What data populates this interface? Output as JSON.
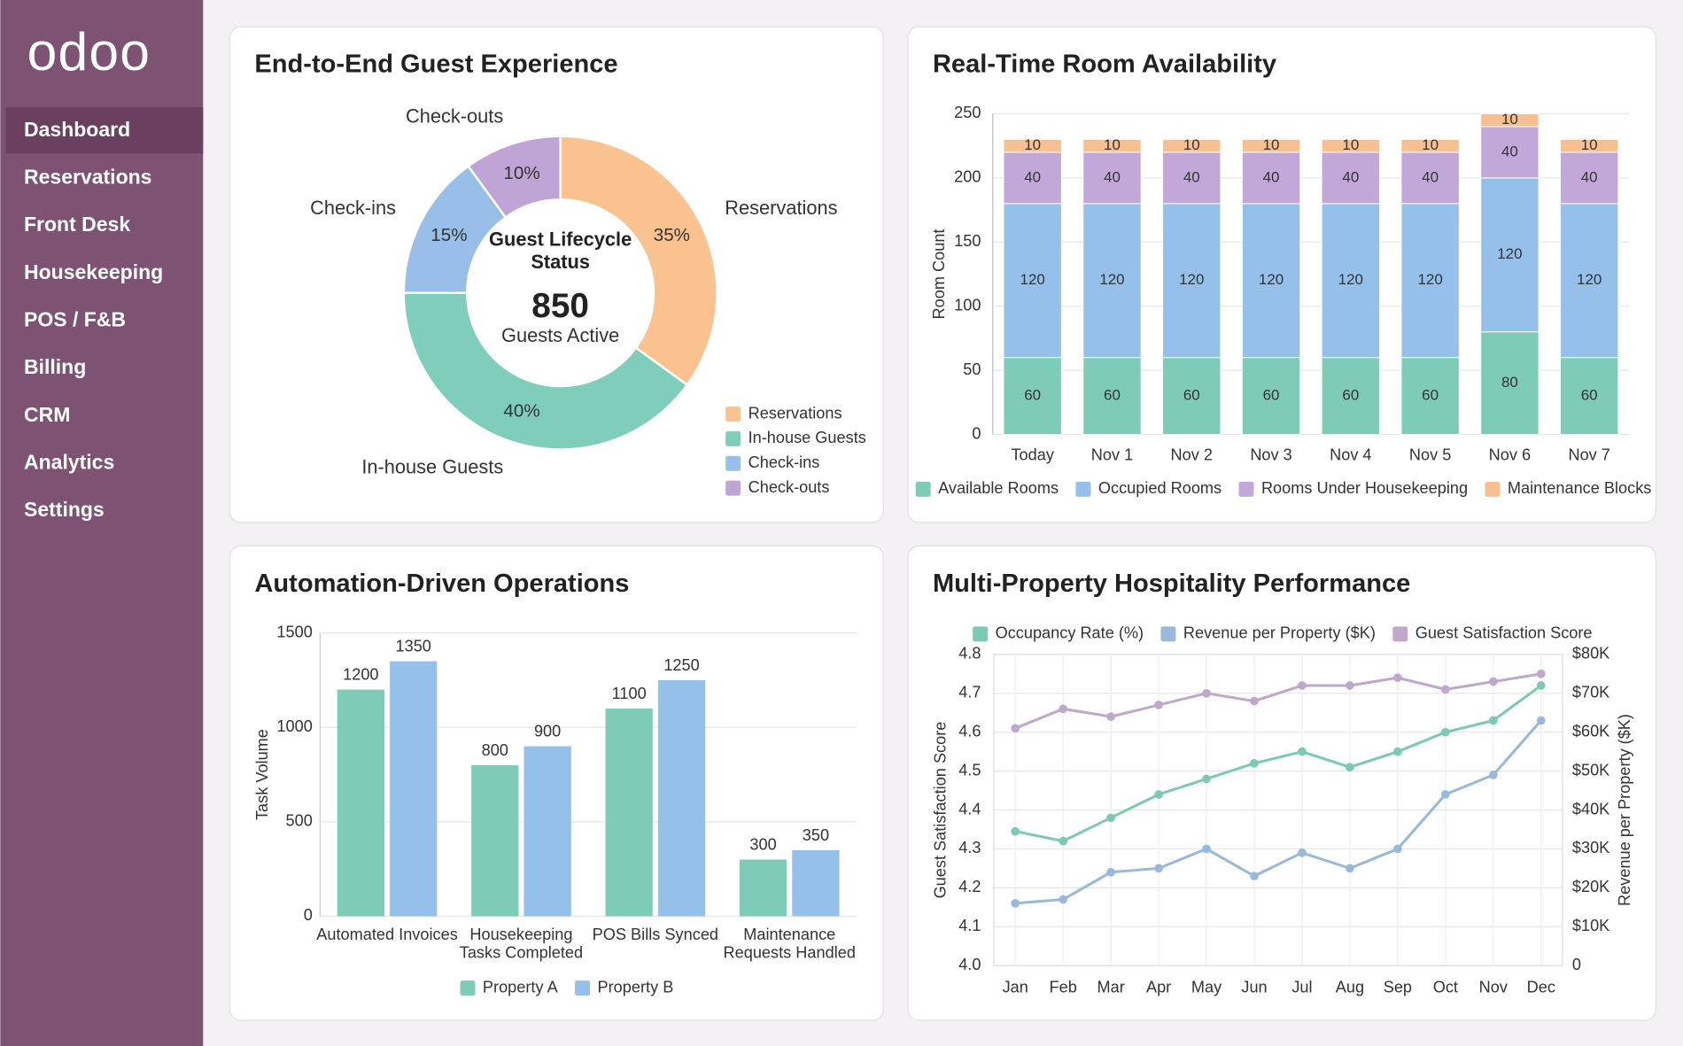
{
  "sidebar": {
    "logo": "odoo",
    "nav": [
      "Dashboard",
      "Reservations",
      "Front Desk",
      "Housekeeping",
      "POS / F&B",
      "Billing",
      "CRM",
      "Analytics",
      "Settings"
    ]
  },
  "chart_data": [
    {
      "type": "donut",
      "title": "End-to-End Guest Experience",
      "categories": [
        "Reservations",
        "In-house Guests",
        "Check-ins",
        "Check-outs"
      ],
      "values": [
        35,
        40,
        15,
        10
      ],
      "value_labels": [
        "35%",
        "40%",
        "15%",
        "10%"
      ],
      "colors": [
        "#f9c28e",
        "#7fcdbb",
        "#98bfe8",
        "#bfa5d6"
      ],
      "center_title": "Guest Lifecycle Status",
      "center_value": 850,
      "center_subtitle": "Guests Active",
      "legend": "lower-right"
    },
    {
      "type": "stacked-bar",
      "title": "Real-Time Room Availability",
      "y_label": "Room Count",
      "categories": [
        "Today",
        "Nov 1",
        "Nov 2",
        "Nov 3",
        "Nov 4",
        "Nov 5",
        "Nov 6",
        "Nov 7"
      ],
      "series": [
        {
          "name": "Available Rooms",
          "color": "#7ecbb8",
          "values": [
            60,
            60,
            60,
            60,
            60,
            60,
            80,
            60
          ]
        },
        {
          "name": "Occupied Rooms",
          "color": "#94c0ea",
          "values": [
            120,
            120,
            120,
            120,
            120,
            120,
            120,
            120
          ]
        },
        {
          "name": "Rooms Under Housekeeping",
          "color": "#c2a8d8",
          "values": [
            40,
            40,
            40,
            40,
            40,
            40,
            40,
            40
          ]
        },
        {
          "name": "Maintenance Blocks",
          "color": "#f9c08f",
          "values": [
            10,
            10,
            10,
            10,
            10,
            10,
            10,
            10
          ]
        }
      ],
      "ylim": [
        0,
        250
      ],
      "yticks": [
        0,
        50,
        100,
        150,
        200,
        250
      ],
      "grid": true,
      "legend": "bottom"
    },
    {
      "type": "grouped-bar",
      "title": "Automation-Driven Operations",
      "y_label": "Task Volume",
      "categories": [
        "Automated Invoices",
        "Housekeeping Tasks Completed",
        "POS Bills Synced",
        "Maintenance Requests Handled"
      ],
      "series": [
        {
          "name": "Property A",
          "color": "#7ecbb8",
          "values": [
            1200,
            800,
            1100,
            300
          ]
        },
        {
          "name": "Property B",
          "color": "#94c0ea",
          "values": [
            1350,
            900,
            1250,
            350
          ]
        }
      ],
      "ylim": [
        0,
        1500
      ],
      "yticks": [
        0,
        500,
        1000,
        1500
      ],
      "grid": true,
      "legend": "bottom"
    },
    {
      "type": "line",
      "title": "Multi-Property Hospitality Performance",
      "y_label": "Guest Satisfaction Score",
      "y2_label": "Revenue per Property ($K)",
      "categories": [
        "Jan",
        "Feb",
        "Mar",
        "Apr",
        "May",
        "Jun",
        "Jul",
        "Aug",
        "Sep",
        "Oct",
        "Nov",
        "Dec"
      ],
      "series": [
        {
          "name": "Occupancy Rate (%)",
          "color": "#7cc9b4",
          "axis": "y2",
          "values": [
            34.5,
            32,
            38,
            44,
            48,
            52,
            55,
            51,
            55,
            60,
            63,
            72
          ]
        },
        {
          "name": "Revenue per Property ($K)",
          "color": "#98b9dc",
          "axis": "y2",
          "values": [
            16,
            17,
            24,
            25,
            30,
            23,
            29,
            25,
            30,
            44,
            49,
            63
          ]
        },
        {
          "name": "Guest Satisfaction Score",
          "color": "#c0a8cb",
          "axis": "y",
          "values": [
            4.61,
            4.66,
            4.64,
            4.67,
            4.7,
            4.68,
            4.72,
            4.72,
            4.74,
            4.71,
            4.73,
            4.75
          ]
        }
      ],
      "ylim": [
        4,
        4.8
      ],
      "yticks": [
        {
          "value": 4,
          "label": "4.0"
        },
        4.1,
        4.2,
        4.3,
        4.4,
        4.5,
        4.6,
        4.7,
        4.8
      ],
      "y2lim": [
        0,
        80
      ],
      "y2ticks": [
        0,
        {
          "value": 10,
          "label": "$10K"
        },
        {
          "value": 20,
          "label": "$20K"
        },
        {
          "value": 30,
          "label": "$30K"
        },
        {
          "value": 40,
          "label": "$40K"
        },
        {
          "value": 50,
          "label": "$50K"
        },
        {
          "value": 60,
          "label": "$60K"
        },
        {
          "value": 70,
          "label": "$70K"
        },
        {
          "value": 80,
          "label": "$80K"
        }
      ],
      "grid": true,
      "legend": "top"
    }
  ]
}
